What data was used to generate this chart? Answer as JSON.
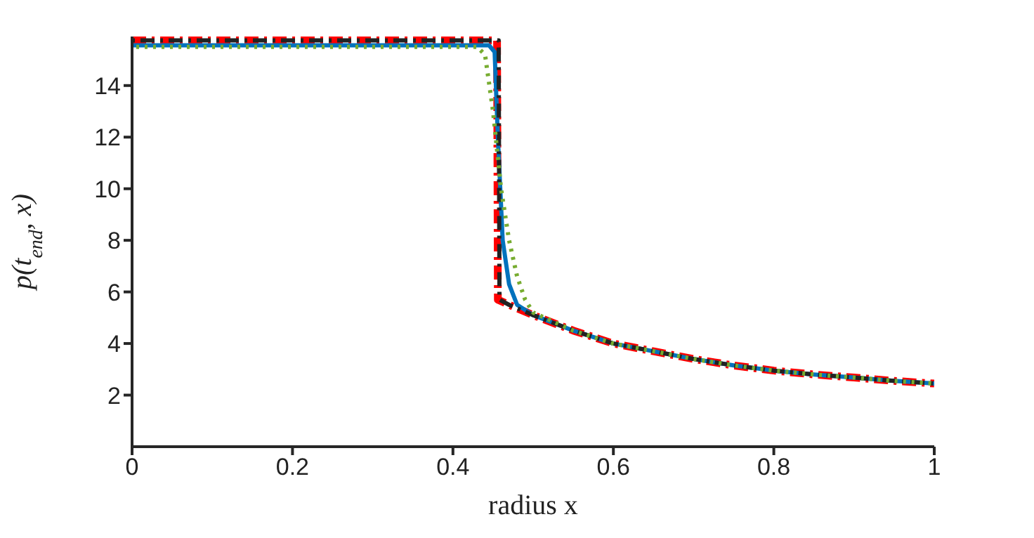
{
  "chart_data": {
    "type": "line",
    "xlabel": "radius x",
    "ylabel": "p(t$_{end}$, x)",
    "xlim": [
      0,
      1
    ],
    "xticks": [
      0,
      0.2,
      0.4,
      0.6,
      0.8,
      1
    ],
    "ylim": [
      0,
      15.9
    ],
    "yticks": [
      2,
      4,
      6,
      8,
      10,
      12,
      14
    ],
    "grid": false,
    "legend": false,
    "marker": "none",
    "series": [
      {
        "color": "#ff0000",
        "line_style": "dashed",
        "x": [
          0,
          0.1,
          0.2,
          0.3,
          0.4,
          0.455,
          0.456,
          0.47,
          0.5,
          0.55,
          0.6,
          0.65,
          0.7,
          0.75,
          0.8,
          0.85,
          0.9,
          0.95,
          1
        ],
        "values": [
          15.75,
          15.75,
          15.75,
          15.75,
          15.75,
          15.75,
          5.7,
          5.5,
          5.1,
          4.5,
          4.0,
          3.7,
          3.4,
          3.15,
          2.95,
          2.8,
          2.68,
          2.55,
          2.45
        ]
      },
      {
        "color": "#0072bd",
        "line_style": "solid",
        "x": [
          0,
          0.1,
          0.2,
          0.3,
          0.4,
          0.445,
          0.452,
          0.456,
          0.462,
          0.47,
          0.48,
          0.5,
          0.55,
          0.6,
          0.65,
          0.7,
          0.75,
          0.8,
          0.85,
          0.9,
          0.95,
          1
        ],
        "values": [
          15.56,
          15.56,
          15.56,
          15.56,
          15.56,
          15.56,
          15.3,
          12,
          8,
          6.3,
          5.5,
          5.1,
          4.5,
          4.0,
          3.7,
          3.4,
          3.15,
          2.95,
          2.8,
          2.68,
          2.55,
          2.45
        ]
      },
      {
        "color": "#222222",
        "line_style": "dashed",
        "x": [
          0,
          0.1,
          0.2,
          0.3,
          0.4,
          0.457,
          0.458,
          0.47,
          0.5,
          0.55,
          0.6,
          0.65,
          0.7,
          0.75,
          0.8,
          0.85,
          0.9,
          0.95,
          1
        ],
        "values": [
          15.75,
          15.75,
          15.75,
          15.75,
          15.75,
          15.75,
          5.7,
          5.5,
          5.1,
          4.5,
          4.0,
          3.7,
          3.4,
          3.15,
          2.95,
          2.8,
          2.68,
          2.55,
          2.45
        ]
      },
      {
        "color": "#77ac30",
        "line_style": "dotted",
        "x": [
          0,
          0.1,
          0.2,
          0.3,
          0.4,
          0.43,
          0.44,
          0.45,
          0.46,
          0.47,
          0.48,
          0.49,
          0.5,
          0.55,
          0.6,
          0.65,
          0.7,
          0.75,
          0.8,
          0.85,
          0.9,
          0.95,
          1
        ],
        "values": [
          15.5,
          15.5,
          15.5,
          15.5,
          15.5,
          15.5,
          15.2,
          13,
          10,
          8,
          6.6,
          5.7,
          5.2,
          4.5,
          4.0,
          3.7,
          3.4,
          3.15,
          2.95,
          2.8,
          2.68,
          2.55,
          2.45
        ]
      }
    ]
  }
}
